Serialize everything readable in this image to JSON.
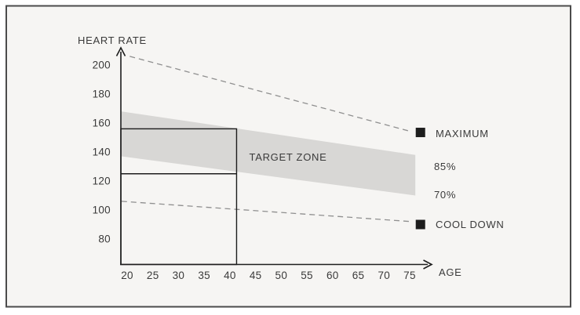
{
  "figure": {
    "background_color": "#f6f5f3",
    "border_color": "#4b4b4b",
    "ink_color": "#1d1d1d",
    "text_color": "#3a3a3a",
    "dash_color": "#8f8f8f"
  },
  "chart_data": {
    "type": "line",
    "title": "",
    "xlabel": "AGE",
    "ylabel": "HEART RATE",
    "x_ticks": [
      20,
      25,
      30,
      35,
      40,
      45,
      50,
      55,
      60,
      65,
      70,
      75
    ],
    "y_ticks": [
      200,
      180,
      160,
      140,
      120,
      100,
      80
    ],
    "xlim": [
      18.5,
      77.5
    ],
    "ylim": [
      60,
      212
    ],
    "grid": false,
    "legend_position": "right",
    "series": [
      {
        "name": "maximum-heart-rate",
        "label": "MAXIMUM",
        "style": "dashed",
        "points": [
          [
            20.5,
            206
          ],
          [
            75.4,
            154
          ]
        ],
        "marker": {
          "age": 77.1,
          "hr": 153.5
        },
        "marker_shape": "square",
        "marker_color": "#1d1d1d"
      },
      {
        "name": "cool-down",
        "label": "COOL DOWN",
        "style": "dashed",
        "points": [
          [
            18.9,
            106
          ],
          [
            75.4,
            92
          ]
        ],
        "marker": {
          "age": 77.1,
          "hr": 90
        },
        "marker_shape": "square",
        "marker_color": "#1d1d1d"
      }
    ],
    "target_zone": {
      "label": "TARGET ZONE",
      "upper_label": "85%",
      "lower_label": "70%",
      "fill_color": "#d8d7d5",
      "upper_edge": [
        [
          18.9,
          168
        ],
        [
          76.1,
          138
        ]
      ],
      "lower_edge": [
        [
          18.9,
          137
        ],
        [
          76.1,
          110
        ]
      ]
    },
    "reference_box": {
      "age": 41,
      "hr_upper": 156,
      "hr_lower": 125
    }
  }
}
